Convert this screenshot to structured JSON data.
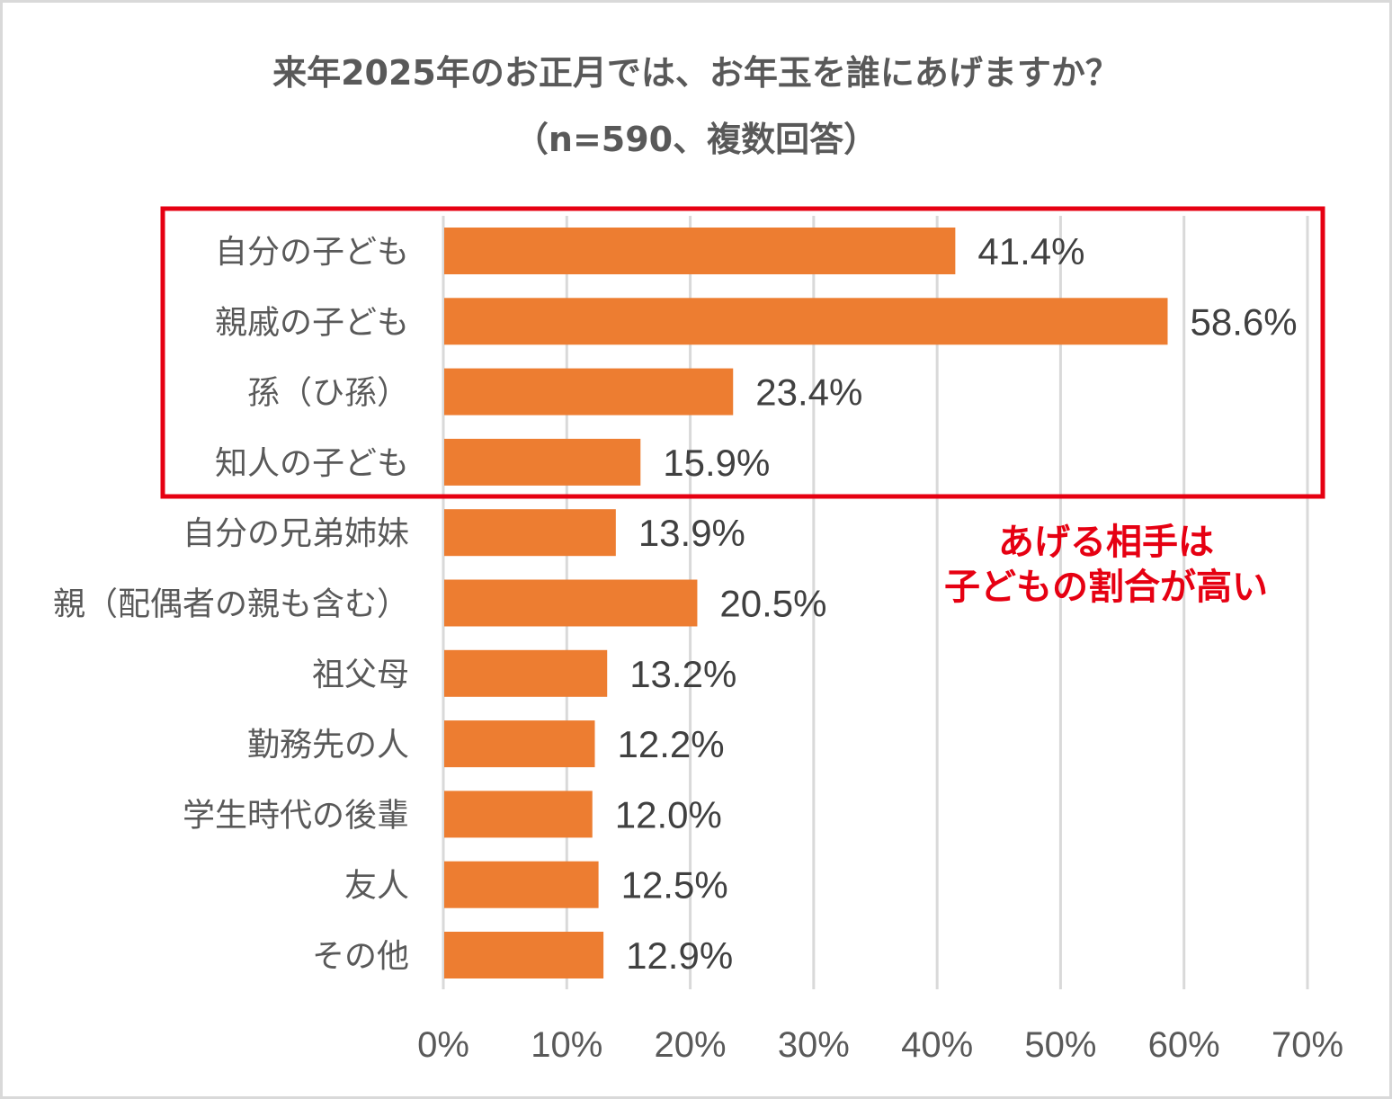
{
  "title_line1": "来年2025年のお正月では、お年玉を誰にあげますか？",
  "title_line2": "（n=590、複数回答）",
  "annotation": {
    "line1": "あげる相手は",
    "line2": "子どもの割合が高い"
  },
  "colors": {
    "bar": "#ed7d31",
    "highlight": "#e60012",
    "grid": "#d9d9d9"
  },
  "chart_data": {
    "type": "bar",
    "orientation": "horizontal",
    "title": "来年2025年のお正月では、お年玉を誰にあげますか？（n=590、複数回答）",
    "categories": [
      "自分の子ども",
      "親戚の子ども",
      "孫（ひ孫）",
      "知人の子ども",
      "自分の兄弟姉妹",
      "親（配偶者の親も含む）",
      "祖父母",
      "勤務先の人",
      "学生時代の後輩",
      "友人",
      "その他"
    ],
    "values": [
      41.4,
      58.6,
      23.4,
      15.9,
      13.9,
      20.5,
      13.2,
      12.2,
      12.0,
      12.5,
      12.9
    ],
    "value_labels": [
      "41.4%",
      "58.6%",
      "23.4%",
      "15.9%",
      "13.9%",
      "20.5%",
      "13.2%",
      "12.2%",
      "12.0%",
      "12.5%",
      "12.9%"
    ],
    "xlim": [
      0,
      70
    ],
    "xticks": [
      0,
      10,
      20,
      30,
      40,
      50,
      60,
      70
    ],
    "xtick_labels": [
      "0%",
      "10%",
      "20%",
      "30%",
      "40%",
      "50%",
      "60%",
      "70%"
    ],
    "grid": true,
    "highlighted_categories": [
      "自分の子ども",
      "親戚の子ども",
      "孫（ひ孫）",
      "知人の子ども"
    ],
    "xlabel": "",
    "ylabel": ""
  }
}
